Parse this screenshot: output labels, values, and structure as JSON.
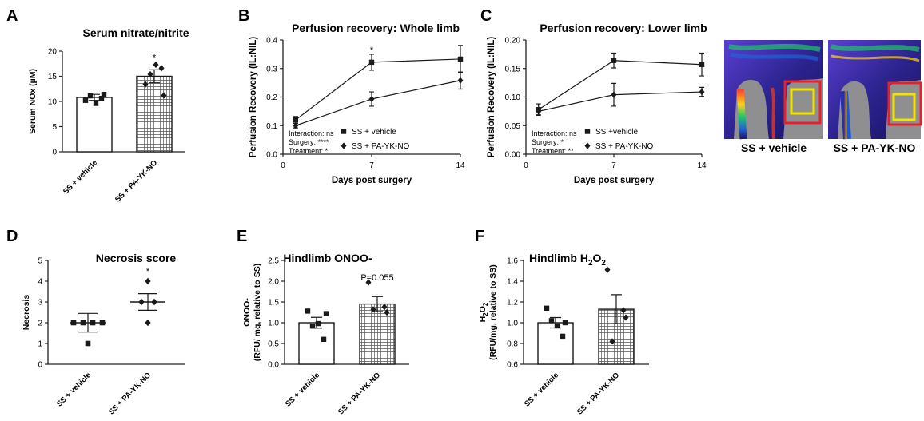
{
  "chart_data": [
    {
      "id": "A",
      "type": "bar",
      "panel_letter": "A",
      "title": "Serum nitrate/nitrite",
      "ylabel": "Serum NOx (µM)",
      "ylim": [
        0,
        20
      ],
      "yticks": [
        "0",
        "5",
        "10",
        "15",
        "20"
      ],
      "categories": [
        "SS + vehicle",
        "SS + PA-YK-NO"
      ],
      "values": [
        10.8,
        15.0
      ],
      "errors": [
        0.6,
        1.3
      ],
      "points": [
        [
          10.2,
          10.6,
          11.1,
          11.4,
          9.6
        ],
        [
          13.4,
          16.6,
          15.4,
          11.2,
          17.3
        ]
      ],
      "annotations": [
        "",
        "*"
      ]
    },
    {
      "id": "B",
      "type": "line",
      "panel_letter": "B",
      "title": "Perfusion recovery: Whole limb",
      "ylabel": "Perfusion Recovery (IL:NIL)",
      "xlabel": "Days post surgery",
      "x": [
        1,
        7,
        14
      ],
      "xlim": [
        0,
        14
      ],
      "xticks": [
        "0",
        "7",
        "14"
      ],
      "ylim": [
        0,
        0.4
      ],
      "yticks": [
        "0.0",
        "0.1",
        "0.2",
        "0.3",
        "0.4"
      ],
      "series": [
        {
          "name": "SS + vehicle",
          "marker": "square",
          "values": [
            0.12,
            0.322,
            0.333
          ],
          "errors": [
            0.012,
            0.028,
            0.048
          ]
        },
        {
          "name": "SS + PA-YK-NO",
          "marker": "diamond",
          "values": [
            0.1,
            0.193,
            0.258
          ],
          "errors": [
            0.008,
            0.025,
            0.03
          ]
        }
      ],
      "annotations": [
        {
          "x": 7,
          "text": "*"
        }
      ],
      "stats": [
        "Interaction: ns",
        "Surgery: ****",
        "Treatment: *"
      ]
    },
    {
      "id": "C",
      "type": "line",
      "panel_letter": "C",
      "title": "Perfusion recovery: Lower limb",
      "ylabel": "Perfusion Recovery (IL:NIL)",
      "xlabel": "Days post surgery",
      "x": [
        1,
        7,
        14
      ],
      "xlim": [
        0,
        14
      ],
      "xticks": [
        "0",
        "7",
        "14"
      ],
      "ylim": [
        0,
        0.2
      ],
      "yticks": [
        "0.00",
        "0.05",
        "0.10",
        "0.15",
        "0.20"
      ],
      "series": [
        {
          "name": "SS +vehicle",
          "marker": "square",
          "values": [
            0.078,
            0.164,
            0.157
          ],
          "errors": [
            0.01,
            0.013,
            0.02
          ]
        },
        {
          "name": "SS + PA-YK-NO",
          "marker": "diamond",
          "values": [
            0.075,
            0.104,
            0.109
          ],
          "errors": [
            0.006,
            0.02,
            0.008
          ]
        }
      ],
      "stats": [
        "Interaction: ns",
        "Surgery: *",
        "Treatment: **"
      ]
    },
    {
      "id": "D",
      "type": "scatter",
      "panel_letter": "D",
      "title": "Necrosis score",
      "ylabel": "Necrosis",
      "ylim": [
        0,
        5
      ],
      "yticks": [
        "0",
        "1",
        "2",
        "3",
        "4",
        "5"
      ],
      "categories": [
        "SS + vehicle",
        "SS + PA-YK-NO"
      ],
      "means": [
        2.0,
        3.0
      ],
      "errors": [
        0.45,
        0.4
      ],
      "points": [
        [
          2,
          2,
          2,
          2,
          1
        ],
        [
          4,
          3,
          3,
          2
        ]
      ],
      "annotations": [
        "",
        "*"
      ]
    },
    {
      "id": "E",
      "type": "bar",
      "panel_letter": "E",
      "title": "Hindlimb ONOO-",
      "ylabel_lines": [
        "ONOO-",
        "(RFU/ mg, relative to SS)"
      ],
      "ylim": [
        0,
        2.5
      ],
      "yticks": [
        "0.0",
        "0.5",
        "1.0",
        "1.5",
        "2.0",
        "2.5"
      ],
      "categories": [
        "SS + vehicle",
        "SS + PA-YK-NO"
      ],
      "values": [
        1.0,
        1.45
      ],
      "errors": [
        0.13,
        0.18
      ],
      "points": [
        [
          1.28,
          0.6,
          0.92,
          1.22,
          0.98
        ],
        [
          1.97,
          1.38,
          1.32,
          1.25
        ]
      ],
      "annotations": [
        "",
        "P=0.055"
      ]
    },
    {
      "id": "F",
      "type": "bar",
      "panel_letter": "F",
      "title_main": "Hindlimb H",
      "title_sub1": "2",
      "title_mid": "O",
      "title_sub2": "2",
      "ylabel_main": "H",
      "ylabel_sub1": "2",
      "ylabel_mid": "O",
      "ylabel_sub2": "2",
      "ylabel_line2": "(RFU/mg, relative to SS)",
      "ylim": [
        0.6,
        1.6
      ],
      "yticks": [
        "0.6",
        "0.8",
        "1.0",
        "1.2",
        "1.4",
        "1.6"
      ],
      "categories": [
        "SS + vehicle",
        "SS + PA-YK-NO"
      ],
      "values": [
        1.0,
        1.13
      ],
      "errors": [
        0.05,
        0.14
      ],
      "points": [
        [
          1.14,
          0.87,
          1.02,
          1.0,
          0.97
        ],
        [
          1.51,
          1.12,
          0.82,
          1.05
        ]
      ],
      "annotations": [
        "",
        ""
      ]
    }
  ],
  "images": {
    "left_caption": "SS + vehicle",
    "right_caption": "SS + PA-YK-NO",
    "box_colors": {
      "outer": "#e8202a",
      "inner": "#f2e400"
    }
  },
  "colors": {
    "ink": "#1a1a1a",
    "hatch": "#444444",
    "background": "#ffffff"
  }
}
